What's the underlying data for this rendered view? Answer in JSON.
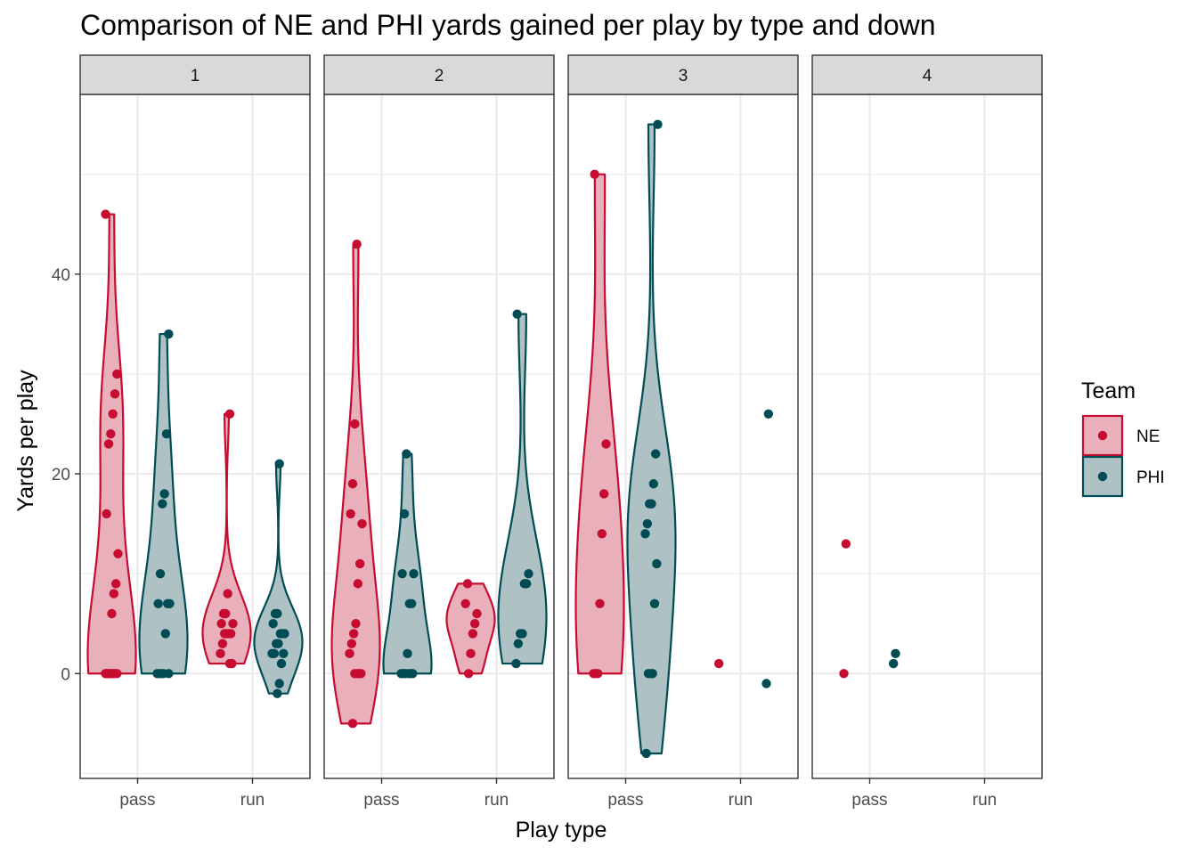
{
  "chart_data": {
    "type": "violin",
    "title": "Comparison of NE and PHI yards gained per play by type and down",
    "xlabel": "Play type",
    "ylabel": "Yards per play",
    "ylim": [
      -10.5,
      58
    ],
    "y_ticks": [
      0,
      20,
      40
    ],
    "x_categories": [
      "pass",
      "run"
    ],
    "facets": [
      "1",
      "2",
      "3",
      "4"
    ],
    "grid": true,
    "legend": {
      "title": "Team",
      "position": "right",
      "items": [
        {
          "name": "NE",
          "color": "#C60C30",
          "fill": "#E9AFBA"
        },
        {
          "name": "PHI",
          "color": "#004C54",
          "fill": "#AEC1C4"
        }
      ]
    },
    "panels": [
      {
        "facet": "1",
        "groups": [
          {
            "team": "NE",
            "play_type": "pass",
            "y": [
              46,
              30,
              28,
              26,
              24,
              23,
              16,
              12,
              9,
              8,
              6,
              0,
              0,
              0,
              0,
              0,
              0,
              0,
              0,
              0
            ]
          },
          {
            "team": "PHI",
            "play_type": "pass",
            "y": [
              34,
              24,
              18,
              17,
              10,
              7,
              7,
              7,
              4,
              0,
              0,
              0,
              0,
              0
            ]
          },
          {
            "team": "NE",
            "play_type": "run",
            "y": [
              26,
              8,
              6,
              6,
              5,
              5,
              4,
              4,
              4,
              4,
              3,
              2,
              1,
              1
            ]
          },
          {
            "team": "PHI",
            "play_type": "run",
            "y": [
              21,
              6,
              6,
              5,
              4,
              4,
              4,
              3,
              3,
              2,
              2,
              2,
              1,
              -1,
              -2
            ]
          }
        ]
      },
      {
        "facet": "2",
        "groups": [
          {
            "team": "NE",
            "play_type": "pass",
            "y": [
              43,
              25,
              19,
              16,
              15,
              11,
              9,
              5,
              4,
              3,
              2,
              0,
              0,
              0,
              0,
              -5
            ]
          },
          {
            "team": "PHI",
            "play_type": "pass",
            "y": [
              22,
              16,
              10,
              10,
              7,
              7,
              2,
              0,
              0,
              0,
              0,
              0,
              0
            ]
          },
          {
            "team": "NE",
            "play_type": "run",
            "y": [
              9,
              7,
              6,
              5,
              4,
              2,
              0
            ]
          },
          {
            "team": "PHI",
            "play_type": "run",
            "y": [
              36,
              10,
              9,
              9,
              4,
              4,
              3,
              1
            ]
          }
        ]
      },
      {
        "facet": "3",
        "groups": [
          {
            "team": "NE",
            "play_type": "pass",
            "y": [
              50,
              23,
              18,
              14,
              7,
              0,
              0,
              0
            ]
          },
          {
            "team": "PHI",
            "play_type": "pass",
            "y": [
              55,
              22,
              19,
              17,
              17,
              15,
              14,
              11,
              7,
              0,
              0,
              0,
              -8
            ]
          },
          {
            "team": "NE",
            "play_type": "run",
            "y": [
              1
            ]
          },
          {
            "team": "PHI",
            "play_type": "run",
            "y": [
              26,
              -1
            ]
          }
        ]
      },
      {
        "facet": "4",
        "groups": [
          {
            "team": "NE",
            "play_type": "pass",
            "y": [
              13,
              0
            ]
          },
          {
            "team": "PHI",
            "play_type": "pass",
            "y": [
              2,
              1
            ]
          }
        ]
      }
    ]
  }
}
